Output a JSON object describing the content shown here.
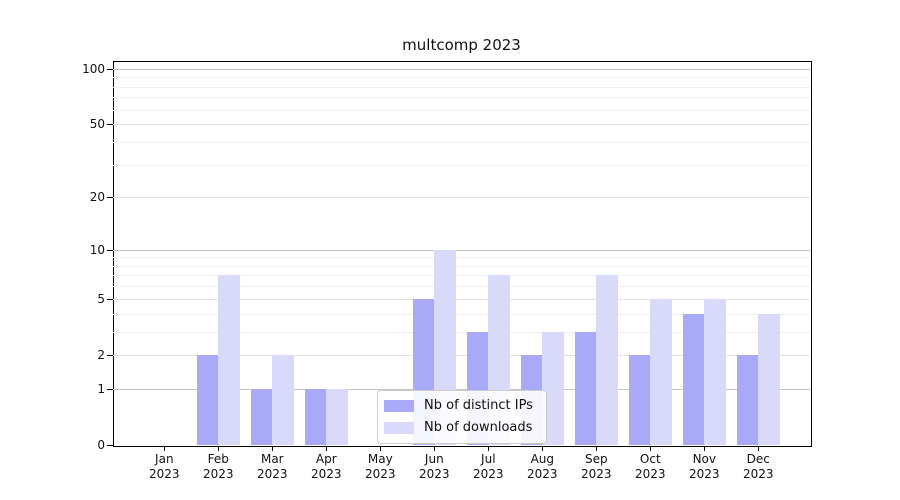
{
  "figure": {
    "title": "multcomp 2023"
  },
  "chart_data": {
    "type": "bar",
    "title": "multcomp 2023",
    "categories": [
      "Jan 2023",
      "Feb 2023",
      "Mar 2023",
      "Apr 2023",
      "May 2023",
      "Jun 2023",
      "Jul 2023",
      "Aug 2023",
      "Sep 2023",
      "Oct 2023",
      "Nov 2023",
      "Dec 2023"
    ],
    "x_tick_months": [
      "Jan",
      "Feb",
      "Mar",
      "Apr",
      "May",
      "Jun",
      "Jul",
      "Aug",
      "Sep",
      "Oct",
      "Nov",
      "Dec"
    ],
    "x_tick_year": "2023",
    "series": [
      {
        "name": "Nb of distinct IPs",
        "color": "#a9a9fa",
        "values": [
          0,
          2,
          1,
          1,
          0,
          5,
          3,
          2,
          3,
          2,
          4,
          2
        ]
      },
      {
        "name": "Nb of downloads",
        "color": "#d9d9fa",
        "values": [
          0,
          7,
          2,
          1,
          0,
          10,
          7,
          3,
          7,
          5,
          5,
          4
        ]
      }
    ],
    "yscale": "log1p",
    "ylim": [
      0,
      110
    ],
    "yticks": [
      0,
      1,
      2,
      5,
      10,
      20,
      50,
      100
    ],
    "yticks_minor": [
      3,
      4,
      6,
      7,
      8,
      9,
      30,
      40,
      60,
      70,
      80,
      90
    ],
    "grid": true,
    "legend_position": "lower center inside",
    "xlabel": "",
    "ylabel": ""
  }
}
